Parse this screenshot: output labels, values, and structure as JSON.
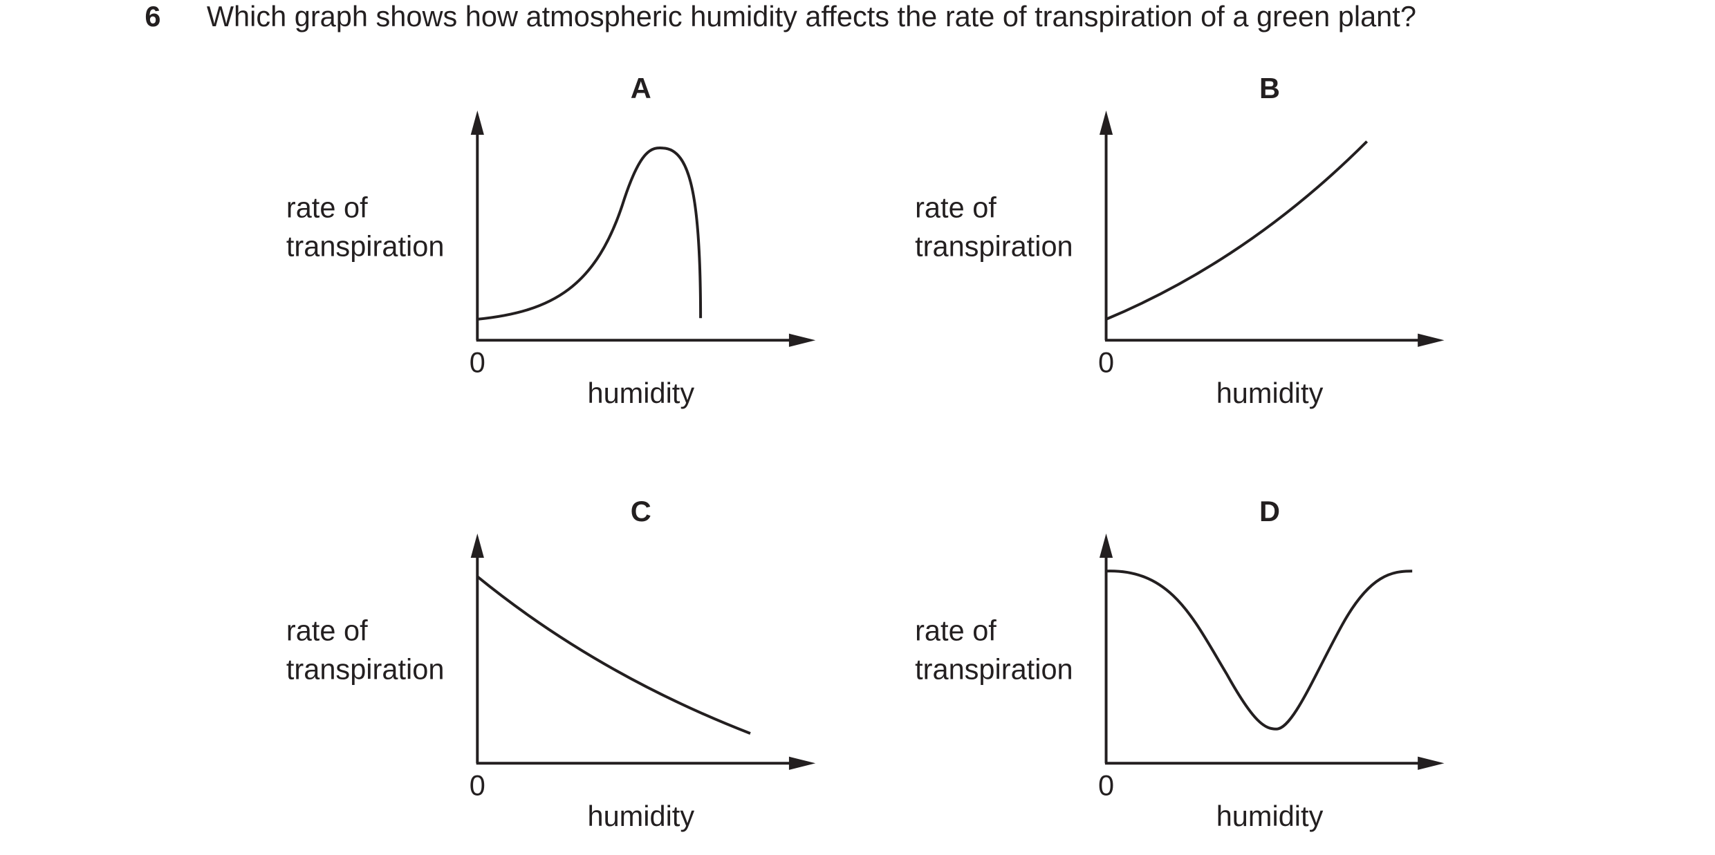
{
  "question": {
    "number": "6",
    "text": "Which graph shows how atmospheric humidity affects the rate of transpiration of a green plant?"
  },
  "options": [
    {
      "label": "A",
      "y_axis_label": [
        "rate of",
        "transpiration"
      ],
      "origin": "0",
      "x_axis_label": "humidity"
    },
    {
      "label": "B",
      "y_axis_label": [
        "rate of",
        "transpiration"
      ],
      "origin": "0",
      "x_axis_label": "humidity"
    },
    {
      "label": "C",
      "y_axis_label": [
        "rate of",
        "transpiration"
      ],
      "origin": "0",
      "x_axis_label": "humidity"
    },
    {
      "label": "D",
      "y_axis_label": [
        "rate of",
        "transpiration"
      ],
      "origin": "0",
      "x_axis_label": "humidity"
    }
  ]
}
